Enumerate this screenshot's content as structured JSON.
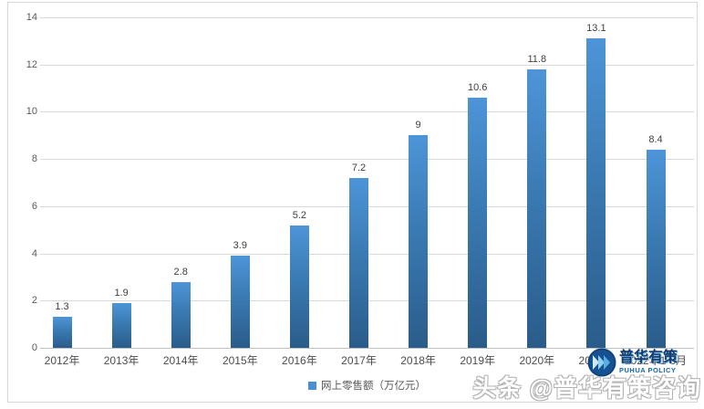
{
  "chart_data": {
    "type": "bar",
    "categories": [
      "2012年",
      "2013年",
      "2014年",
      "2015年",
      "2016年",
      "2017年",
      "2018年",
      "2019年",
      "2020年",
      "2021年",
      "2022年1-8月"
    ],
    "values": [
      1.3,
      1.9,
      2.8,
      3.9,
      5.2,
      7.2,
      9,
      10.6,
      11.8,
      13.1,
      8.4
    ],
    "value_labels": [
      "1.3",
      "1.9",
      "2.8",
      "3.9",
      "5.2",
      "7.2",
      "9",
      "10.6",
      "11.8",
      "13.1",
      "8.4"
    ],
    "title": "",
    "xlabel": "",
    "ylabel": "",
    "legend": "网上零售额（万亿元）",
    "legend_position": "bottom",
    "ylim": [
      0,
      14
    ],
    "ytick_interval": 2,
    "yticks": [
      "0",
      "2",
      "4",
      "6",
      "8",
      "10",
      "12",
      "14"
    ],
    "grid": true,
    "bar_color_top": "#4d95d8",
    "bar_color_bottom": "#2a5c8a"
  },
  "branding": {
    "logo_text_cn": "普华有策",
    "logo_text_en": "PUHUA POLICY",
    "watermark": "头条 @普华有策咨询"
  },
  "colors": {
    "gridline": "#d9d9d9",
    "axis": "#c0c0c0",
    "tick_text": "#595959",
    "data_label": "#404040",
    "legend_marker": "#4a8fd2",
    "logo_navy": "#1a3a6e",
    "logo_blue": "#1565ae",
    "watermark_fill": "#ffffff"
  }
}
